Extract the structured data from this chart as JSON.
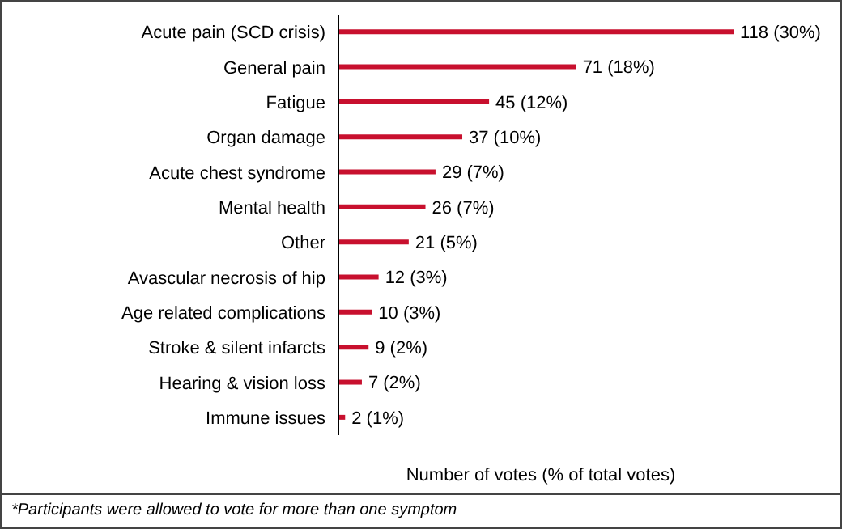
{
  "chart_data": {
    "type": "bar",
    "orientation": "horizontal",
    "xlabel": "Number of votes (% of total votes)",
    "categories": [
      "Acute pain (SCD crisis)",
      "General pain",
      "Fatigue",
      "Organ damage",
      "Acute chest syndrome",
      "Mental health",
      "Other",
      "Avascular necrosis of hip",
      "Age related complications",
      "Stroke & silent infarcts",
      "Hearing & vision loss",
      "Immune issues"
    ],
    "values": [
      118,
      71,
      45,
      37,
      29,
      26,
      21,
      12,
      10,
      9,
      7,
      2
    ],
    "value_labels": [
      "118 (30%)",
      "71 (18%)",
      "45 (12%)",
      "37 (10%)",
      "29 (7%)",
      "26 (7%)",
      "21 (5%)",
      "12 (3%)",
      "10 (3%)",
      "9 (2%)",
      "7 (2%)",
      "2 (1%)"
    ],
    "color": "#c8102e",
    "annotations": [
      "*Participants were allowed to vote for more than one symptom"
    ]
  }
}
